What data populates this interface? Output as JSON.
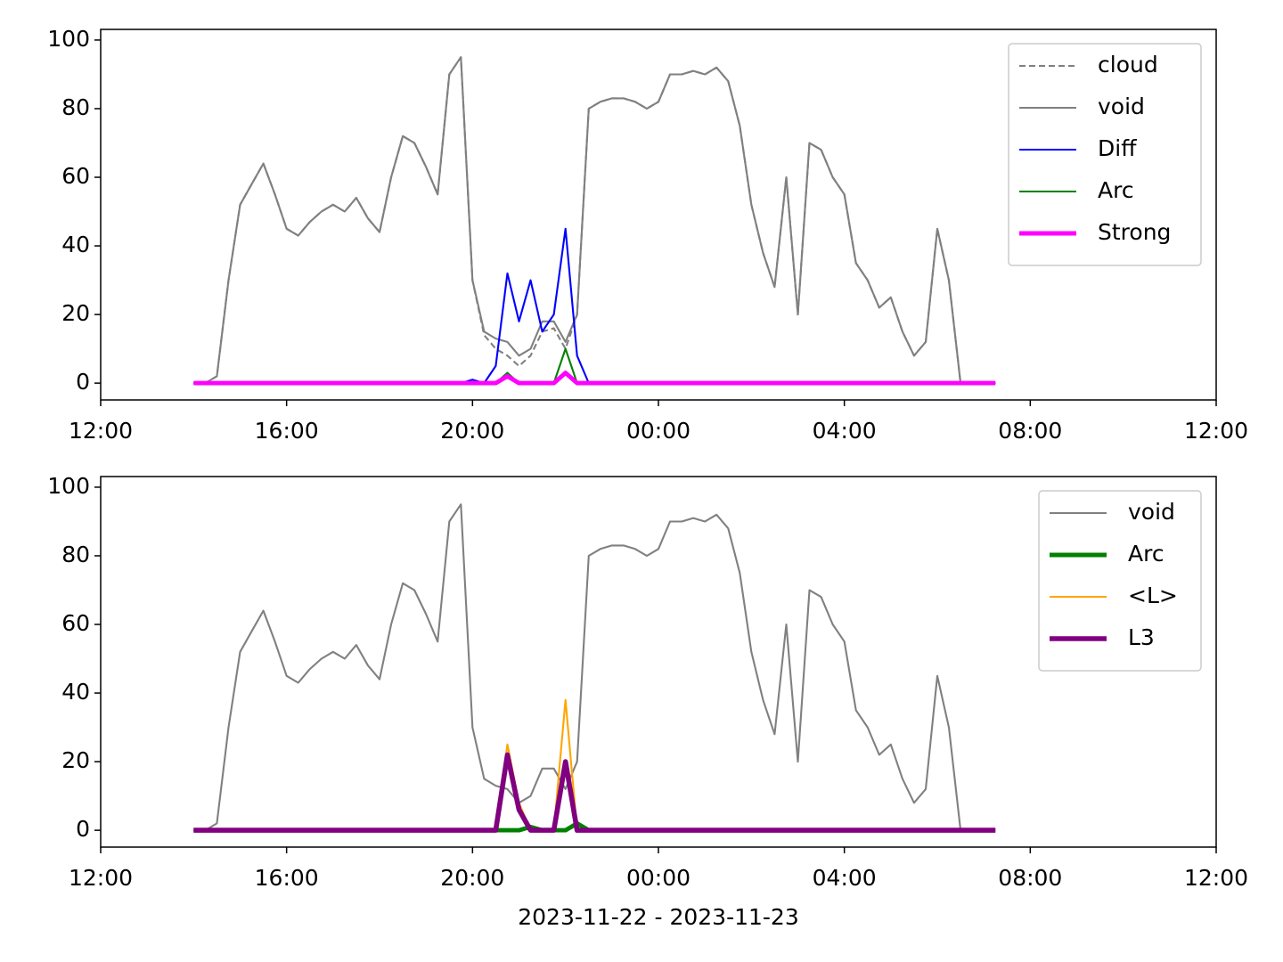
{
  "chart_data": [
    {
      "type": "line",
      "x": [
        "2023-11-22T14:00",
        "2023-11-22T14:15",
        "2023-11-22T14:30",
        "2023-11-22T14:45",
        "2023-11-22T15:00",
        "2023-11-22T15:15",
        "2023-11-22T15:30",
        "2023-11-22T15:45",
        "2023-11-22T16:00",
        "2023-11-22T16:15",
        "2023-11-22T16:30",
        "2023-11-22T16:45",
        "2023-11-22T17:00",
        "2023-11-22T17:15",
        "2023-11-22T17:30",
        "2023-11-22T17:45",
        "2023-11-22T18:00",
        "2023-11-22T18:15",
        "2023-11-22T18:30",
        "2023-11-22T18:45",
        "2023-11-22T19:00",
        "2023-11-22T19:15",
        "2023-11-22T19:30",
        "2023-11-22T19:45",
        "2023-11-22T20:00",
        "2023-11-22T20:15",
        "2023-11-22T20:30",
        "2023-11-22T20:45",
        "2023-11-22T21:00",
        "2023-11-22T21:15",
        "2023-11-22T21:30",
        "2023-11-22T21:45",
        "2023-11-22T22:00",
        "2023-11-22T22:15",
        "2023-11-22T22:30",
        "2023-11-22T22:45",
        "2023-11-22T23:00",
        "2023-11-22T23:15",
        "2023-11-22T23:30",
        "2023-11-22T23:45",
        "2023-11-23T00:00",
        "2023-11-23T00:15",
        "2023-11-23T00:30",
        "2023-11-23T00:45",
        "2023-11-23T01:00",
        "2023-11-23T01:15",
        "2023-11-23T01:30",
        "2023-11-23T01:45",
        "2023-11-23T02:00",
        "2023-11-23T02:15",
        "2023-11-23T02:30",
        "2023-11-23T02:45",
        "2023-11-23T03:00",
        "2023-11-23T03:15",
        "2023-11-23T03:30",
        "2023-11-23T03:45",
        "2023-11-23T04:00",
        "2023-11-23T04:15",
        "2023-11-23T04:30",
        "2023-11-23T04:45",
        "2023-11-23T05:00",
        "2023-11-23T05:15",
        "2023-11-23T05:30",
        "2023-11-23T05:45",
        "2023-11-23T06:00",
        "2023-11-23T06:15",
        "2023-11-23T06:30",
        "2023-11-23T06:45",
        "2023-11-23T07:00",
        "2023-11-23T07:15"
      ],
      "series": [
        {
          "name": "cloud",
          "color": "#808080",
          "linestyle": "dashed",
          "linewidth": 1.5,
          "values": [
            0,
            0,
            2,
            30,
            52,
            58,
            64,
            55,
            45,
            43,
            47,
            50,
            52,
            50,
            54,
            48,
            44,
            60,
            72,
            70,
            63,
            55,
            90,
            95,
            30,
            14,
            10,
            8,
            5,
            8,
            15,
            16,
            10,
            20,
            80,
            82,
            83,
            83,
            82,
            80,
            82,
            90,
            90,
            91,
            90,
            92,
            88,
            75,
            52,
            38,
            28,
            60,
            20,
            70,
            68,
            60,
            55,
            35,
            30,
            22,
            25,
            15,
            8,
            12,
            45,
            30,
            0,
            0,
            0,
            0
          ]
        },
        {
          "name": "void",
          "color": "#808080",
          "linestyle": "solid",
          "linewidth": 1.5,
          "values": [
            0,
            0,
            2,
            30,
            52,
            58,
            64,
            55,
            45,
            43,
            47,
            50,
            52,
            50,
            54,
            48,
            44,
            60,
            72,
            70,
            63,
            55,
            90,
            95,
            30,
            15,
            13,
            12,
            8,
            10,
            18,
            18,
            12,
            20,
            80,
            82,
            83,
            83,
            82,
            80,
            82,
            90,
            90,
            91,
            90,
            92,
            88,
            75,
            52,
            38,
            28,
            60,
            20,
            70,
            68,
            60,
            55,
            35,
            30,
            22,
            25,
            15,
            8,
            12,
            45,
            30,
            0,
            0,
            0,
            0
          ]
        },
        {
          "name": "Diff",
          "color": "#0000ff",
          "linestyle": "solid",
          "linewidth": 1.5,
          "values": [
            0,
            0,
            0,
            0,
            0,
            0,
            0,
            0,
            0,
            0,
            0,
            0,
            0,
            0,
            0,
            0,
            0,
            0,
            0,
            0,
            0,
            0,
            0,
            0,
            1,
            0,
            5,
            32,
            18,
            30,
            15,
            20,
            45,
            8,
            0,
            0,
            0,
            0,
            0,
            0,
            0,
            0,
            0,
            0,
            0,
            0,
            0,
            0,
            0,
            0,
            0,
            0,
            0,
            0,
            0,
            0,
            0,
            0,
            0,
            0,
            0,
            0,
            0,
            0,
            0,
            0,
            0,
            0,
            0,
            0
          ]
        },
        {
          "name": "Arc",
          "color": "#008000",
          "linestyle": "solid",
          "linewidth": 1.5,
          "values": [
            0,
            0,
            0,
            0,
            0,
            0,
            0,
            0,
            0,
            0,
            0,
            0,
            0,
            0,
            0,
            0,
            0,
            0,
            0,
            0,
            0,
            0,
            0,
            0,
            0,
            0,
            0,
            3,
            0,
            0,
            0,
            0,
            10,
            0,
            0,
            0,
            0,
            0,
            0,
            0,
            0,
            0,
            0,
            0,
            0,
            0,
            0,
            0,
            0,
            0,
            0,
            0,
            0,
            0,
            0,
            0,
            0,
            0,
            0,
            0,
            0,
            0,
            0,
            0,
            0,
            0,
            0,
            0,
            0,
            0
          ]
        },
        {
          "name": "Strong",
          "color": "#ff00ff",
          "linestyle": "solid",
          "linewidth": 3.5,
          "values": [
            0,
            0,
            0,
            0,
            0,
            0,
            0,
            0,
            0,
            0,
            0,
            0,
            0,
            0,
            0,
            0,
            0,
            0,
            0,
            0,
            0,
            0,
            0,
            0,
            0,
            0,
            0,
            2,
            0,
            0,
            0,
            0,
            3,
            0,
            0,
            0,
            0,
            0,
            0,
            0,
            0,
            0,
            0,
            0,
            0,
            0,
            0,
            0,
            0,
            0,
            0,
            0,
            0,
            0,
            0,
            0,
            0,
            0,
            0,
            0,
            0,
            0,
            0,
            0,
            0,
            0,
            0,
            0,
            0,
            0
          ]
        }
      ],
      "xlim": [
        "2023-11-22T12:00",
        "2023-11-23T12:00"
      ],
      "xticks": [
        {
          "value": "2023-11-22T12:00",
          "label": "12:00"
        },
        {
          "value": "2023-11-22T16:00",
          "label": "16:00"
        },
        {
          "value": "2023-11-22T20:00",
          "label": "20:00"
        },
        {
          "value": "2023-11-23T00:00",
          "label": "00:00"
        },
        {
          "value": "2023-11-23T04:00",
          "label": "04:00"
        },
        {
          "value": "2023-11-23T08:00",
          "label": "08:00"
        },
        {
          "value": "2023-11-23T12:00",
          "label": "12:00"
        }
      ],
      "ylim": [
        -4.9,
        103.1
      ],
      "yticks": [
        0,
        20,
        40,
        60,
        80,
        100
      ],
      "legend": "upper right"
    },
    {
      "type": "line",
      "x": [
        "2023-11-22T14:00",
        "2023-11-22T14:15",
        "2023-11-22T14:30",
        "2023-11-22T14:45",
        "2023-11-22T15:00",
        "2023-11-22T15:15",
        "2023-11-22T15:30",
        "2023-11-22T15:45",
        "2023-11-22T16:00",
        "2023-11-22T16:15",
        "2023-11-22T16:30",
        "2023-11-22T16:45",
        "2023-11-22T17:00",
        "2023-11-22T17:15",
        "2023-11-22T17:30",
        "2023-11-22T17:45",
        "2023-11-22T18:00",
        "2023-11-22T18:15",
        "2023-11-22T18:30",
        "2023-11-22T18:45",
        "2023-11-22T19:00",
        "2023-11-22T19:15",
        "2023-11-22T19:30",
        "2023-11-22T19:45",
        "2023-11-22T20:00",
        "2023-11-22T20:15",
        "2023-11-22T20:30",
        "2023-11-22T20:45",
        "2023-11-22T21:00",
        "2023-11-22T21:15",
        "2023-11-22T21:30",
        "2023-11-22T21:45",
        "2023-11-22T22:00",
        "2023-11-22T22:15",
        "2023-11-22T22:30",
        "2023-11-22T22:45",
        "2023-11-22T23:00",
        "2023-11-22T23:15",
        "2023-11-22T23:30",
        "2023-11-22T23:45",
        "2023-11-23T00:00",
        "2023-11-23T00:15",
        "2023-11-23T00:30",
        "2023-11-23T00:45",
        "2023-11-23T01:00",
        "2023-11-23T01:15",
        "2023-11-23T01:30",
        "2023-11-23T01:45",
        "2023-11-23T02:00",
        "2023-11-23T02:15",
        "2023-11-23T02:30",
        "2023-11-23T02:45",
        "2023-11-23T03:00",
        "2023-11-23T03:15",
        "2023-11-23T03:30",
        "2023-11-23T03:45",
        "2023-11-23T04:00",
        "2023-11-23T04:15",
        "2023-11-23T04:30",
        "2023-11-23T04:45",
        "2023-11-23T05:00",
        "2023-11-23T05:15",
        "2023-11-23T05:30",
        "2023-11-23T05:45",
        "2023-11-23T06:00",
        "2023-11-23T06:15",
        "2023-11-23T06:30",
        "2023-11-23T06:45",
        "2023-11-23T07:00",
        "2023-11-23T07:15"
      ],
      "series": [
        {
          "name": "void",
          "color": "#808080",
          "linestyle": "solid",
          "linewidth": 1.5,
          "values": [
            0,
            0,
            2,
            30,
            52,
            58,
            64,
            55,
            45,
            43,
            47,
            50,
            52,
            50,
            54,
            48,
            44,
            60,
            72,
            70,
            63,
            55,
            90,
            95,
            30,
            15,
            13,
            12,
            8,
            10,
            18,
            18,
            12,
            20,
            80,
            82,
            83,
            83,
            82,
            80,
            82,
            90,
            90,
            91,
            90,
            92,
            88,
            75,
            52,
            38,
            28,
            60,
            20,
            70,
            68,
            60,
            55,
            35,
            30,
            22,
            25,
            15,
            8,
            12,
            45,
            30,
            0,
            0,
            0,
            0
          ]
        },
        {
          "name": "Arc",
          "color": "#008000",
          "linestyle": "solid",
          "linewidth": 3.5,
          "values": [
            0,
            0,
            0,
            0,
            0,
            0,
            0,
            0,
            0,
            0,
            0,
            0,
            0,
            0,
            0,
            0,
            0,
            0,
            0,
            0,
            0,
            0,
            0,
            0,
            0,
            0,
            0,
            0,
            0,
            1,
            0,
            0,
            0,
            2,
            0,
            0,
            0,
            0,
            0,
            0,
            0,
            0,
            0,
            0,
            0,
            0,
            0,
            0,
            0,
            0,
            0,
            0,
            0,
            0,
            0,
            0,
            0,
            0,
            0,
            0,
            0,
            0,
            0,
            0,
            0,
            0,
            0,
            0,
            0,
            0
          ]
        },
        {
          "name": "<L>",
          "color": "#ffa500",
          "linestyle": "solid",
          "linewidth": 1.5,
          "values": [
            0,
            0,
            0,
            0,
            0,
            0,
            0,
            0,
            0,
            0,
            0,
            0,
            0,
            0,
            0,
            0,
            0,
            0,
            0,
            0,
            0,
            0,
            0,
            0,
            0,
            0,
            0,
            25,
            8,
            0,
            0,
            0,
            38,
            0,
            0,
            0,
            0,
            0,
            0,
            0,
            0,
            0,
            0,
            0,
            0,
            0,
            0,
            0,
            0,
            0,
            0,
            0,
            0,
            0,
            0,
            0,
            0,
            0,
            0,
            0,
            0,
            0,
            0,
            0,
            0,
            0,
            0,
            0,
            0,
            0
          ]
        },
        {
          "name": "L3",
          "color": "#800080",
          "linestyle": "solid",
          "linewidth": 4,
          "values": [
            0,
            0,
            0,
            0,
            0,
            0,
            0,
            0,
            0,
            0,
            0,
            0,
            0,
            0,
            0,
            0,
            0,
            0,
            0,
            0,
            0,
            0,
            0,
            0,
            0,
            0,
            0,
            22,
            6,
            0,
            0,
            0,
            20,
            0,
            0,
            0,
            0,
            0,
            0,
            0,
            0,
            0,
            0,
            0,
            0,
            0,
            0,
            0,
            0,
            0,
            0,
            0,
            0,
            0,
            0,
            0,
            0,
            0,
            0,
            0,
            0,
            0,
            0,
            0,
            0,
            0,
            0,
            0,
            0,
            0
          ]
        }
      ],
      "xlim": [
        "2023-11-22T12:00",
        "2023-11-23T12:00"
      ],
      "xticks": [
        {
          "value": "2023-11-22T12:00",
          "label": "12:00"
        },
        {
          "value": "2023-11-22T16:00",
          "label": "16:00"
        },
        {
          "value": "2023-11-22T20:00",
          "label": "20:00"
        },
        {
          "value": "2023-11-23T00:00",
          "label": "00:00"
        },
        {
          "value": "2023-11-23T04:00",
          "label": "04:00"
        },
        {
          "value": "2023-11-23T08:00",
          "label": "08:00"
        },
        {
          "value": "2023-11-23T12:00",
          "label": "12:00"
        }
      ],
      "ylim": [
        -4.9,
        103.1
      ],
      "yticks": [
        0,
        20,
        40,
        60,
        80,
        100
      ],
      "xlabel": "2023-11-22 - 2023-11-23",
      "legend": "upper right"
    }
  ]
}
